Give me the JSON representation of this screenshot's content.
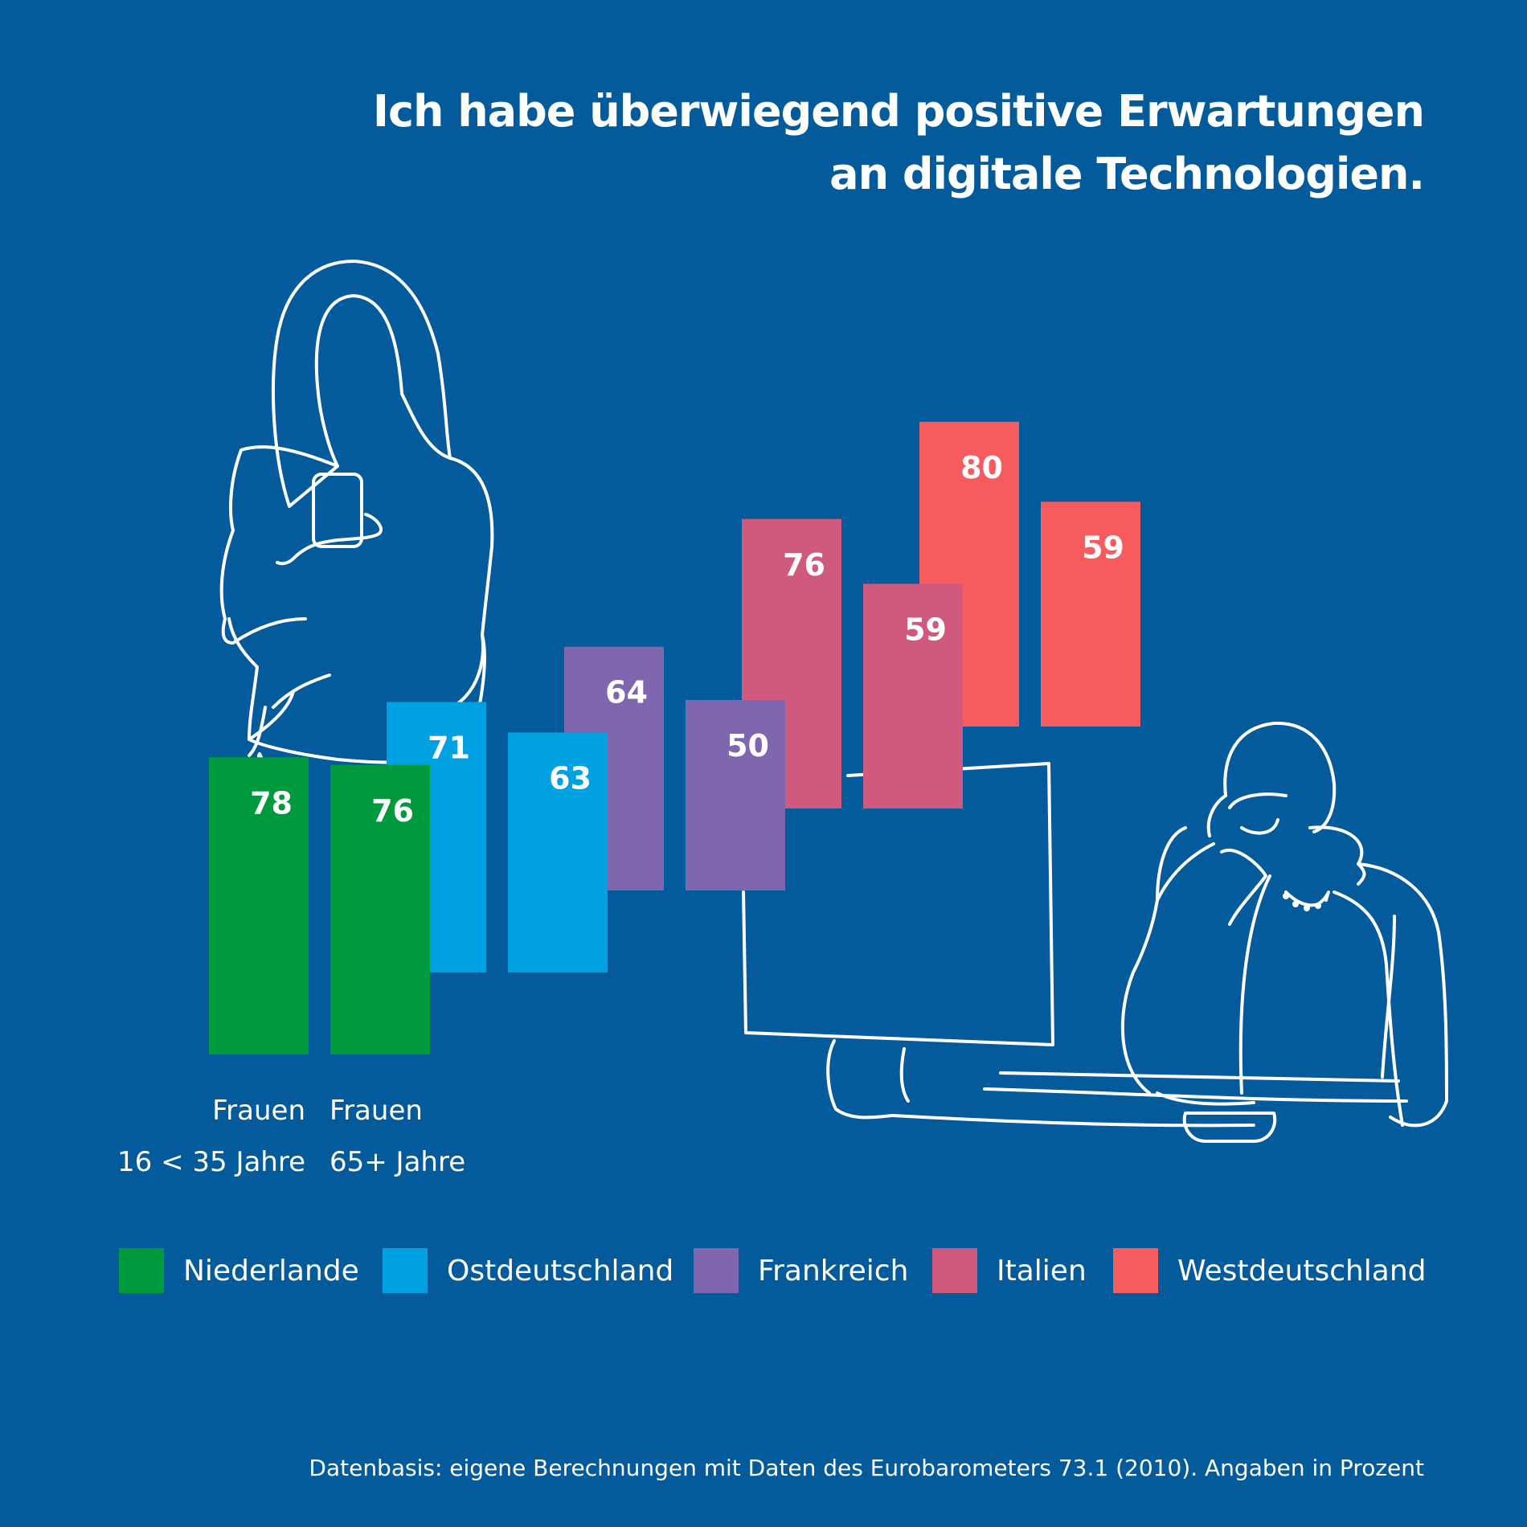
{
  "title": {
    "line1": "Ich habe überwiegend positive Erwartungen",
    "line2": "an digitale Technologien."
  },
  "colors": {
    "background": "#045b9b",
    "Niederlande": "#009a3e",
    "Ostdeutschland": "#00a1e0",
    "Frankreich": "#7f67b0",
    "Italien": "#d05a7d",
    "Westdeutschland": "#f65b5d",
    "line_art": "#ffffff"
  },
  "groups": [
    {
      "id": "young",
      "line1": "Frauen",
      "line2": "16 < 35 Jahre"
    },
    {
      "id": "old",
      "line1": "Frauen",
      "line2": "65+ Jahre"
    }
  ],
  "chart_data": {
    "type": "bar",
    "title": "Ich habe überwiegend positive Erwartungen an digitale Technologien.",
    "unit": "Prozent",
    "categories": [
      "Frauen 16 < 35 Jahre",
      "Frauen 65+ Jahre"
    ],
    "series": [
      {
        "name": "Niederlande",
        "values": [
          78,
          76
        ]
      },
      {
        "name": "Ostdeutschland",
        "values": [
          71,
          63
        ]
      },
      {
        "name": "Frankreich",
        "values": [
          64,
          50
        ]
      },
      {
        "name": "Italien",
        "values": [
          76,
          59
        ]
      },
      {
        "name": "Westdeutschland",
        "values": [
          80,
          59
        ]
      }
    ],
    "legend": [
      "Niederlande",
      "Ostdeutschland",
      "Frankreich",
      "Italien",
      "Westdeutschland"
    ],
    "legend_position": "bottom",
    "grid": false
  },
  "source": "Datenbasis: eigene Berechnungen mit Daten des Eurobarometers 73.1 (2010). Angaben in Prozent"
}
